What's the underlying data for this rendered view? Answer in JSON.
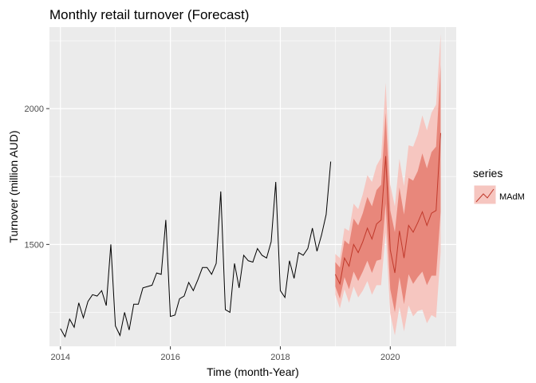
{
  "chart_data": {
    "type": "line",
    "title": "Monthly retail turnover (Forecast)",
    "xlabel": "Time (month-Year)",
    "ylabel": "Turnover (million AUD)",
    "xlim": [
      2013.8,
      2021.2
    ],
    "ylim": [
      1125,
      2300
    ],
    "x_ticks": [
      2014,
      2016,
      2018,
      2020
    ],
    "y_ticks": [
      1500,
      2000
    ],
    "grid": true,
    "legend": {
      "title": "series",
      "position": "right",
      "entries": [
        "MAdM"
      ]
    },
    "colors": {
      "history": "#000000",
      "forecast_line": "#c0392b",
      "pi80": "#e8877b",
      "pi95": "#f6c6c0",
      "panel": "#ebebeb",
      "grid": "#ffffff"
    },
    "history": {
      "start": [
        2014,
        1
      ],
      "values": [
        1190,
        1160,
        1225,
        1195,
        1285,
        1230,
        1290,
        1315,
        1310,
        1330,
        1275,
        1500,
        1200,
        1165,
        1250,
        1185,
        1280,
        1280,
        1340,
        1345,
        1350,
        1395,
        1390,
        1590,
        1235,
        1240,
        1300,
        1310,
        1360,
        1330,
        1370,
        1415,
        1415,
        1390,
        1430,
        1695,
        1260,
        1250,
        1430,
        1340,
        1460,
        1440,
        1435,
        1485,
        1460,
        1450,
        1510,
        1730,
        1330,
        1305,
        1440,
        1375,
        1470,
        1460,
        1485,
        1560,
        1475,
        1535,
        1610,
        1805
      ]
    },
    "forecast": {
      "series": "MAdM",
      "start": [
        2019,
        1
      ],
      "mean": [
        1390,
        1355,
        1450,
        1420,
        1500,
        1470,
        1510,
        1560,
        1520,
        1575,
        1590,
        1825,
        1480,
        1395,
        1550,
        1450,
        1570,
        1545,
        1580,
        1620,
        1570,
        1615,
        1625,
        1910
      ],
      "lo80": [
        1345,
        1300,
        1380,
        1335,
        1400,
        1365,
        1400,
        1440,
        1395,
        1440,
        1445,
        1650,
        1335,
        1250,
        1380,
        1280,
        1390,
        1355,
        1380,
        1400,
        1350,
        1385,
        1385,
        1620
      ],
      "hi80": [
        1435,
        1415,
        1515,
        1500,
        1595,
        1570,
        1615,
        1675,
        1640,
        1700,
        1720,
        1985,
        1625,
        1545,
        1710,
        1610,
        1745,
        1735,
        1770,
        1835,
        1780,
        1840,
        1860,
        2160
      ],
      "lo95": [
        1315,
        1265,
        1335,
        1285,
        1345,
        1305,
        1330,
        1365,
        1315,
        1350,
        1350,
        1545,
        1245,
        1165,
        1270,
        1180,
        1275,
        1235,
        1255,
        1260,
        1210,
        1240,
        1230,
        1470
      ],
      "hi95": [
        1465,
        1450,
        1560,
        1550,
        1650,
        1630,
        1685,
        1755,
        1730,
        1790,
        1820,
        2095,
        1720,
        1640,
        1815,
        1715,
        1865,
        1860,
        1905,
        1975,
        1920,
        1985,
        2015,
        2275
      ]
    }
  }
}
